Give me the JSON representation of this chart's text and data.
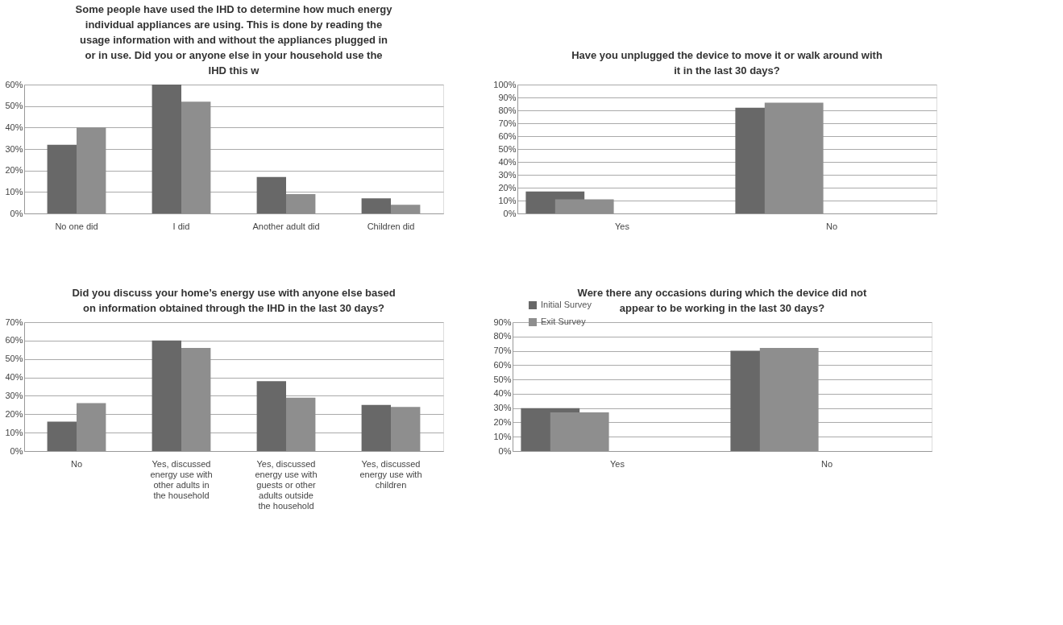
{
  "chart_data": [
    {
      "type": "bar",
      "title": "Some people have used the IHD to determine how much energy individual appliances are using.  This is done by reading the usage information with and without the appliances plugged in or in use.  Did you or anyone else in your household use the IHD this w",
      "categories": [
        "No one did",
        "I did",
        "Another adult did",
        "Children did"
      ],
      "series": [
        {
          "name": "Initial Survey",
          "color": "#686868",
          "values": [
            0.32,
            0.6,
            0.17,
            0.07
          ]
        },
        {
          "name": "Exit Survey",
          "color": "#8e8e8e",
          "values": [
            0.4,
            0.52,
            0.09,
            0.04
          ]
        }
      ],
      "ylim": [
        0,
        0.6
      ],
      "yticks": [
        {
          "value": 0,
          "label": "0%"
        },
        {
          "value": 0.1,
          "label": "10%"
        },
        {
          "value": 0.2,
          "label": "20%"
        },
        {
          "value": 0.3,
          "label": "30%"
        },
        {
          "value": 0.4,
          "label": "40%"
        },
        {
          "value": 0.5,
          "label": "50%"
        },
        {
          "value": 0.6,
          "label": "60%"
        }
      ],
      "grid": "y",
      "legend": "bottom right"
    },
    {
      "type": "bar",
      "title": "Have you unplugged the device to move it or walk around with it in the last 30 days?",
      "categories": [
        "Yes",
        "No"
      ],
      "series": [
        {
          "name": "Initial Survey",
          "color": "#686868",
          "values": [
            0.17,
            0.82
          ]
        },
        {
          "name": "Exit Survey",
          "color": "#8e8e8e",
          "values": [
            0.11,
            0.86
          ]
        }
      ],
      "ylim": [
        0,
        1.0
      ],
      "yticks": [
        {
          "value": 0,
          "label": "0%"
        },
        {
          "value": 0.1,
          "label": "10%"
        },
        {
          "value": 0.2,
          "label": "20%"
        },
        {
          "value": 0.3,
          "label": "30%"
        },
        {
          "value": 0.4,
          "label": "40%"
        },
        {
          "value": 0.5,
          "label": "50%"
        },
        {
          "value": 0.6,
          "label": "60%"
        },
        {
          "value": 0.7,
          "label": "70%"
        },
        {
          "value": 0.8,
          "label": "80%"
        },
        {
          "value": 0.9,
          "label": "90%"
        },
        {
          "value": 1.0,
          "label": "100%"
        }
      ],
      "grid": "y"
    },
    {
      "type": "bar",
      "title": "Did you discuss your home’s energy use with anyone else based on information obtained through the IHD in the last 30 days?",
      "categories": [
        "No",
        "Yes, discussed energy use with other adults in the household",
        "Yes, discussed energy use with guests or other adults outside the household",
        "Yes, discussed energy use with children"
      ],
      "series": [
        {
          "name": "Initial Survey",
          "color": "#686868",
          "values": [
            0.16,
            0.6,
            0.38,
            0.25
          ]
        },
        {
          "name": "Exit Survey",
          "color": "#8e8e8e",
          "values": [
            0.26,
            0.56,
            0.29,
            0.24
          ]
        }
      ],
      "ylim": [
        0,
        0.7
      ],
      "yticks": [
        {
          "value": 0,
          "label": "0%"
        },
        {
          "value": 0.1,
          "label": "10%"
        },
        {
          "value": 0.2,
          "label": "20%"
        },
        {
          "value": 0.3,
          "label": "30%"
        },
        {
          "value": 0.4,
          "label": "40%"
        },
        {
          "value": 0.5,
          "label": "50%"
        },
        {
          "value": 0.6,
          "label": "60%"
        },
        {
          "value": 0.7,
          "label": "70%"
        }
      ],
      "grid": "y"
    },
    {
      "type": "bar",
      "title": "Were there any occasions during which the device did not appear to be working in the last 30 days?",
      "categories": [
        "Yes",
        "No"
      ],
      "series": [
        {
          "name": "Initial Survey",
          "color": "#686868",
          "values": [
            0.3,
            0.7
          ]
        },
        {
          "name": "Exit Survey",
          "color": "#8e8e8e",
          "values": [
            0.27,
            0.72
          ]
        }
      ],
      "ylim": [
        0,
        0.9
      ],
      "yticks": [
        {
          "value": 0,
          "label": "0%"
        },
        {
          "value": 0.1,
          "label": "10%"
        },
        {
          "value": 0.2,
          "label": "20%"
        },
        {
          "value": 0.3,
          "label": "30%"
        },
        {
          "value": 0.4,
          "label": "40%"
        },
        {
          "value": 0.5,
          "label": "50%"
        },
        {
          "value": 0.6,
          "label": "60%"
        },
        {
          "value": 0.7,
          "label": "70%"
        },
        {
          "value": 0.8,
          "label": "80%"
        },
        {
          "value": 0.9,
          "label": "90%"
        }
      ],
      "grid": "y"
    }
  ]
}
